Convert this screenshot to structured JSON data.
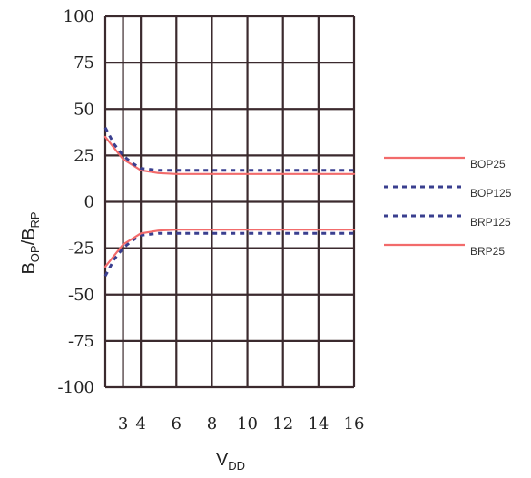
{
  "chart_data": {
    "type": "line",
    "xlabel": {
      "main": "V",
      "sub": "DD"
    },
    "ylabel": {
      "part1_main": "B",
      "part1_sub": "OP",
      "sep": "/",
      "part2_main": "B",
      "part2_sub": "RP"
    },
    "xlim": [
      2,
      16
    ],
    "ylim": [
      -100,
      100
    ],
    "x_ticks": [
      3,
      4,
      6,
      8,
      10,
      12,
      14,
      16
    ],
    "y_ticks": [
      100,
      75,
      50,
      25,
      0,
      -25,
      -50,
      -75,
      -100
    ],
    "grid": true,
    "legend_position": "right",
    "series": [
      {
        "name": "BOP25",
        "color": "#f26b6b",
        "style": "solid",
        "x": [
          2,
          2.5,
          3,
          3.5,
          4,
          5,
          6,
          8,
          10,
          12,
          14,
          16
        ],
        "y": [
          35,
          29,
          23,
          20,
          17,
          15.5,
          15,
          15,
          15,
          15,
          15,
          15
        ]
      },
      {
        "name": "BOP125",
        "color": "#3a3f8f",
        "style": "dotted",
        "x": [
          2,
          2.5,
          3,
          3.5,
          4,
          5,
          6,
          8,
          10,
          12,
          14,
          16
        ],
        "y": [
          40,
          31,
          25,
          21,
          18,
          17,
          17,
          17,
          17,
          17,
          17,
          17
        ]
      },
      {
        "name": "BRP125",
        "color": "#3a3f8f",
        "style": "dotted",
        "x": [
          2,
          2.5,
          3,
          3.5,
          4,
          5,
          6,
          8,
          10,
          12,
          14,
          16
        ],
        "y": [
          -40,
          -31,
          -25,
          -21,
          -18,
          -17,
          -17,
          -17,
          -17,
          -17,
          -17,
          -17
        ]
      },
      {
        "name": "BRP25",
        "color": "#f26b6b",
        "style": "solid",
        "x": [
          2,
          2.5,
          3,
          3.5,
          4,
          5,
          6,
          8,
          10,
          12,
          14,
          16
        ],
        "y": [
          -35,
          -29,
          -23,
          -20,
          -17,
          -15.5,
          -15,
          -15,
          -15,
          -15,
          -15,
          -15
        ]
      }
    ]
  }
}
